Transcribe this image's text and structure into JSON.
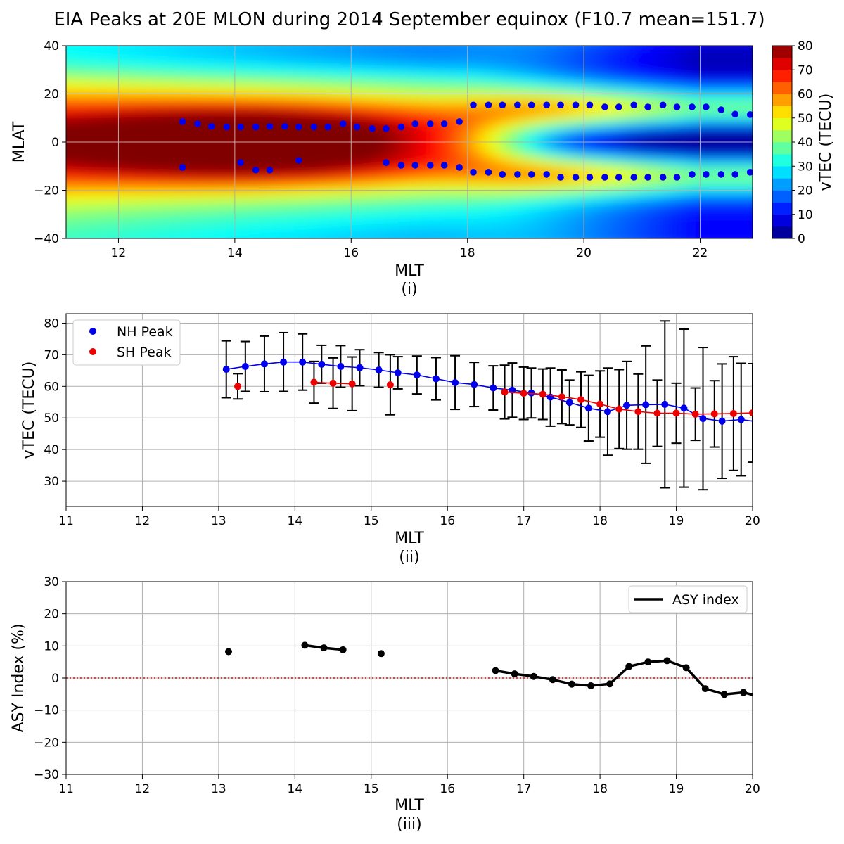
{
  "figure": {
    "title": "EIA Peaks at 20E MLON during 2014 September equinox (F10.7 mean=151.7)"
  },
  "chart_data": [
    {
      "type": "heatmap",
      "panel_label": "(i)",
      "xlabel": "MLT",
      "ylabel": "MLAT",
      "xlim": [
        11.1,
        22.9
      ],
      "ylim": [
        -40,
        40
      ],
      "xticks": [
        12,
        14,
        16,
        18,
        20,
        22
      ],
      "yticks": [
        -40,
        -20,
        0,
        20,
        40
      ],
      "grid": true,
      "colorbar": {
        "label": "vTEC (TECU)",
        "range": [
          0,
          80
        ],
        "ticks": [
          0,
          10,
          20,
          30,
          40,
          50,
          60,
          70,
          80
        ],
        "levels": 16,
        "colormap": "jet"
      },
      "peak_points": [
        [
          13.1,
          8.5
        ],
        [
          13.36,
          7.6
        ],
        [
          13.6,
          6.5
        ],
        [
          13.86,
          6.3
        ],
        [
          14.1,
          6.3
        ],
        [
          14.36,
          6.3
        ],
        [
          14.6,
          6.5
        ],
        [
          14.86,
          6.5
        ],
        [
          15.1,
          6.3
        ],
        [
          15.36,
          6.3
        ],
        [
          15.6,
          6.3
        ],
        [
          15.86,
          7.6
        ],
        [
          16.1,
          6.3
        ],
        [
          16.36,
          5.6
        ],
        [
          16.6,
          5.6
        ],
        [
          16.86,
          6.3
        ],
        [
          17.1,
          7.6
        ],
        [
          17.36,
          7.6
        ],
        [
          17.6,
          7.6
        ],
        [
          17.86,
          8.5
        ],
        [
          18.1,
          15.4
        ],
        [
          18.36,
          15.4
        ],
        [
          18.6,
          15.4
        ],
        [
          18.86,
          15.4
        ],
        [
          19.1,
          15.4
        ],
        [
          19.36,
          15.4
        ],
        [
          19.6,
          15.4
        ],
        [
          19.86,
          15.4
        ],
        [
          20.1,
          15.4
        ],
        [
          20.36,
          14.6
        ],
        [
          20.6,
          14.6
        ],
        [
          20.86,
          15.4
        ],
        [
          21.1,
          14.6
        ],
        [
          21.36,
          15.4
        ],
        [
          21.6,
          14.6
        ],
        [
          21.86,
          14.6
        ],
        [
          22.1,
          14.6
        ],
        [
          22.36,
          13.4
        ],
        [
          22.6,
          11.6
        ],
        [
          22.86,
          11.4
        ],
        [
          13.1,
          -10.5
        ],
        [
          14.1,
          -8.5
        ],
        [
          14.36,
          -11.6
        ],
        [
          14.6,
          -11.6
        ],
        [
          15.1,
          -7.6
        ],
        [
          16.6,
          -8.5
        ],
        [
          16.86,
          -9.6
        ],
        [
          17.1,
          -9.6
        ],
        [
          17.36,
          -9.6
        ],
        [
          17.6,
          -9.6
        ],
        [
          17.86,
          -10.5
        ],
        [
          18.1,
          -12.5
        ],
        [
          18.36,
          -12.5
        ],
        [
          18.6,
          -13.4
        ],
        [
          18.86,
          -13.4
        ],
        [
          19.1,
          -13.4
        ],
        [
          19.36,
          -13.4
        ],
        [
          19.6,
          -14.6
        ],
        [
          19.86,
          -14.6
        ],
        [
          20.1,
          -14.6
        ],
        [
          20.36,
          -14.6
        ],
        [
          20.6,
          -14.6
        ],
        [
          20.86,
          -14.6
        ],
        [
          21.1,
          -14.6
        ],
        [
          21.36,
          -14.6
        ],
        [
          21.6,
          -14.6
        ],
        [
          21.86,
          -13.4
        ],
        [
          22.1,
          -13.4
        ],
        [
          22.36,
          -13.4
        ],
        [
          22.6,
          -13.4
        ],
        [
          22.86,
          -12.5
        ]
      ],
      "point_color": "#0000ee"
    },
    {
      "type": "line",
      "panel_label": "(ii)",
      "xlabel": "MLT",
      "ylabel": "vTEC (TECU)",
      "xlim": [
        11,
        20
      ],
      "ylim": [
        22,
        83
      ],
      "xticks": [
        11,
        12,
        13,
        14,
        15,
        16,
        17,
        18,
        19,
        20
      ],
      "yticks": [
        30,
        40,
        50,
        60,
        70,
        80
      ],
      "grid": true,
      "legend": {
        "placement": "top-left",
        "entries": [
          "NH Peak",
          "SH Peak"
        ]
      },
      "series": [
        {
          "name": "NH Peak",
          "color": "#0000ee",
          "x": [
            13.1,
            13.35,
            13.6,
            13.85,
            14.1,
            14.35,
            14.6,
            14.85,
            15.1,
            15.35,
            15.6,
            15.85,
            16.1,
            16.35,
            16.6,
            16.85,
            17.1,
            17.35,
            17.6,
            17.85,
            18.1,
            18.35,
            18.6,
            18.85,
            19.1,
            19.35,
            19.6,
            19.85,
            20.1
          ],
          "y": [
            65.4,
            66.3,
            67.1,
            67.7,
            67.7,
            67.0,
            66.3,
            65.9,
            65.2,
            64.3,
            63.6,
            62.4,
            61.2,
            60.6,
            59.5,
            58.8,
            57.9,
            56.6,
            54.9,
            53.1,
            52.0,
            54.0,
            54.2,
            54.3,
            53.1,
            49.8,
            49.0,
            49.5,
            48.7
          ],
          "err": [
            9,
            7.9,
            8.8,
            9.3,
            8.9,
            6,
            6.6,
            5.7,
            5.5,
            5.1,
            6,
            6.7,
            8.5,
            7,
            7,
            8.6,
            7.9,
            9.2,
            7.1,
            10.4,
            13.8,
            13.9,
            18.6,
            26.4,
            25,
            22.5,
            18.1,
            17.8,
            18
          ]
        },
        {
          "name": "SH Peak",
          "color": "#ee0000",
          "x": [
            13.25,
            14.25,
            14.5,
            14.75,
            15.25,
            16.75,
            17.0,
            17.25,
            17.5,
            17.75,
            18.0,
            18.25,
            18.5,
            18.75,
            19.0,
            19.25,
            19.5,
            19.75,
            20.0
          ],
          "y": [
            60.0,
            61.3,
            61.0,
            60.8,
            60.5,
            58.2,
            57.8,
            57.5,
            56.7,
            55.8,
            54.4,
            52.8,
            52.0,
            51.5,
            51.5,
            51.2,
            51.3,
            51.4,
            51.6
          ],
          "err": [
            4,
            6.6,
            8,
            8.5,
            9.5,
            8.5,
            8.3,
            8,
            8.5,
            8.8,
            10.5,
            12.5,
            11.9,
            10.5,
            9.5,
            8.3,
            10.5,
            18,
            15.6
          ]
        }
      ]
    },
    {
      "type": "line",
      "panel_label": "(iii)",
      "xlabel": "MLT",
      "ylabel": "ASY Index (%)",
      "xlim": [
        11,
        20
      ],
      "ylim": [
        -30,
        30
      ],
      "xticks": [
        11,
        12,
        13,
        14,
        15,
        16,
        17,
        18,
        19,
        20
      ],
      "yticks": [
        -30,
        -20,
        -10,
        0,
        10,
        20,
        30
      ],
      "grid": true,
      "reference_line": {
        "y": 0,
        "style": "dotted",
        "color": "#ee0000"
      },
      "legend": {
        "placement": "top-right",
        "entries": [
          "ASY index"
        ]
      },
      "series": [
        {
          "name": "ASY index",
          "color": "#000000",
          "x": [
            13.13,
            14.13,
            14.38,
            14.63,
            15.13,
            16.63,
            16.88,
            17.13,
            17.38,
            17.63,
            17.88,
            18.13,
            18.38,
            18.63,
            18.88,
            19.13,
            19.38,
            19.63,
            19.88,
            20.1
          ],
          "y": [
            8.2,
            10.2,
            9.4,
            8.8,
            7.6,
            2.3,
            1.3,
            0.5,
            -0.5,
            -1.9,
            -2.4,
            -1.8,
            3.6,
            5.0,
            5.4,
            3.2,
            -3.3,
            -5.1,
            -4.5,
            -5.8
          ],
          "segments": [
            [
              0
            ],
            [
              1,
              2,
              3
            ],
            [
              4
            ],
            [
              5,
              6,
              7,
              8,
              9,
              10,
              11,
              12,
              13,
              14,
              15,
              16,
              17,
              18,
              19
            ]
          ]
        }
      ]
    }
  ]
}
